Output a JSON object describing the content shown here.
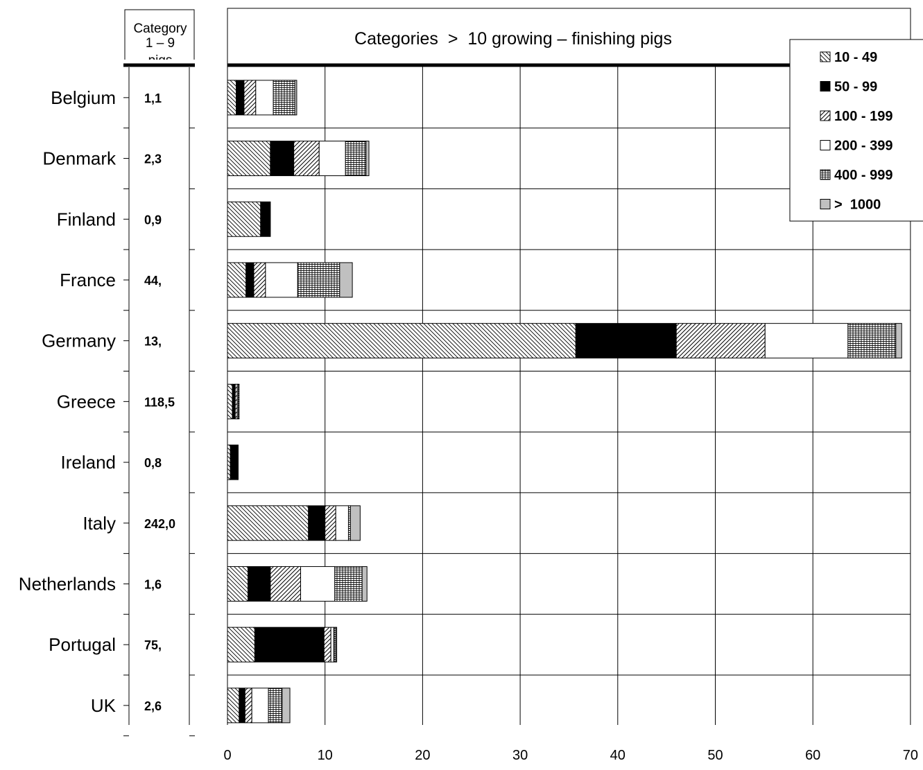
{
  "small_category": {
    "header_lines": [
      "Category",
      "1 – 9",
      "pigs"
    ],
    "values": [
      "1,1",
      "2,3",
      "0,9",
      "44,",
      "13,",
      "118,5",
      "0,8",
      "242,0",
      "1,6",
      "75,",
      "2,6"
    ]
  },
  "chart_data": {
    "type": "bar",
    "orientation": "horizontal",
    "stacked": true,
    "title": "Categories  >  10 growing – finishing pigs",
    "xlabel": "",
    "ylabel": "",
    "xlim": [
      0,
      70
    ],
    "x_ticks": [
      0,
      10,
      20,
      30,
      40,
      50,
      60,
      70
    ],
    "grid": true,
    "legend_position": "top-right",
    "categories": [
      "Belgium",
      "Denmark",
      "Finland",
      "France",
      "Germany",
      "Greece",
      "Ireland",
      "Italy",
      "Netherlands",
      "Portugal",
      "UK"
    ],
    "series": [
      {
        "name": "10 - 49",
        "pattern": "hatch-back",
        "values": [
          0.9,
          4.4,
          3.4,
          1.9,
          35.7,
          0.5,
          0.3,
          8.3,
          2.1,
          2.8,
          1.2
        ]
      },
      {
        "name": "50 - 99",
        "pattern": "solid-black",
        "values": [
          0.8,
          2.4,
          1.0,
          0.8,
          10.3,
          0.3,
          0.8,
          1.7,
          2.3,
          7.1,
          0.6
        ]
      },
      {
        "name": "100 - 199",
        "pattern": "hatch-forward",
        "values": [
          1.2,
          2.6,
          0,
          1.2,
          9.1,
          0.2,
          0,
          1.1,
          3.1,
          0.7,
          0.7
        ]
      },
      {
        "name": "200 - 399",
        "pattern": "white",
        "values": [
          1.8,
          2.7,
          0,
          3.3,
          8.5,
          0.1,
          0,
          1.3,
          3.5,
          0.3,
          1.7
        ]
      },
      {
        "name": "400 - 999",
        "pattern": "grid",
        "values": [
          2.2,
          2.1,
          0,
          4.3,
          4.9,
          0.1,
          0,
          0.2,
          2.8,
          0.2,
          1.4
        ]
      },
      {
        "name": ">  1000",
        "pattern": "solid-gray",
        "values": [
          0.2,
          0.3,
          0,
          1.3,
          0.6,
          0,
          0,
          1.0,
          0.5,
          0.1,
          0.8
        ]
      }
    ],
    "colors": {
      "ink": "#000000",
      "background": "#ffffff",
      "gray_fill": "#c0c0c0"
    }
  }
}
